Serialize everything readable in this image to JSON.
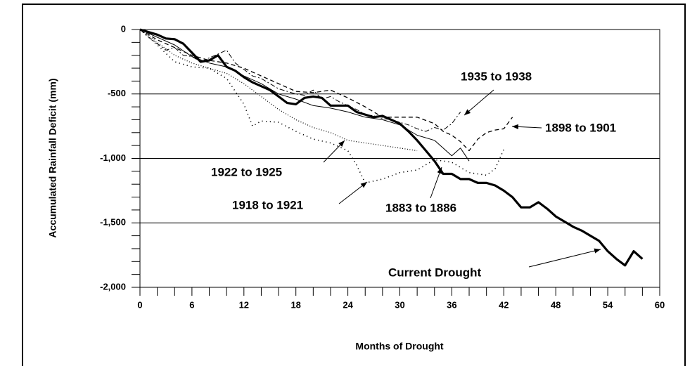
{
  "chart_data": {
    "type": "line",
    "xlabel": "Months of Drought",
    "ylabel": "Accumulated Rainfall Deficit (mm)",
    "xlim": [
      0,
      60
    ],
    "xticks": [
      0,
      6,
      12,
      18,
      24,
      30,
      36,
      42,
      48,
      54,
      60
    ],
    "xminorticks": [
      2,
      4,
      8,
      10,
      14,
      16,
      20,
      22,
      26,
      28,
      32,
      34,
      38,
      40,
      44,
      46,
      50,
      52,
      56,
      58
    ],
    "ylim": [
      -2000,
      0
    ],
    "yticks": [
      0,
      -500,
      {
        "value": -1000,
        "label": "-1,000"
      },
      {
        "value": -1500,
        "label": "-1,500"
      },
      {
        "value": -2000,
        "label": "-2,000"
      }
    ],
    "yminorticks": [
      -100,
      -200,
      -300,
      -400,
      -600,
      -700,
      -800,
      -900,
      -1100,
      -1200,
      -1300,
      -1400,
      -1600,
      -1700,
      -1800,
      -1900
    ],
    "grid": [
      -500,
      -1000,
      -1500
    ],
    "color": "#000000",
    "series": [
      {
        "name": "Current Drought",
        "style": "bold",
        "x": [
          0,
          1,
          2,
          3,
          4,
          5,
          6,
          7,
          8,
          9,
          10,
          11,
          12,
          13,
          14,
          15,
          16,
          17,
          18,
          19,
          20,
          21,
          22,
          23,
          24,
          25,
          26,
          27,
          28,
          29,
          30,
          31,
          32,
          33,
          34,
          35,
          36,
          37,
          38,
          39,
          40,
          41,
          42,
          43,
          44,
          45,
          46,
          47,
          48,
          49,
          50,
          51,
          52,
          53,
          54,
          55,
          56,
          57,
          58
        ],
        "values": [
          0,
          -20,
          -40,
          -70,
          -75,
          -110,
          -180,
          -250,
          -240,
          -200,
          -290,
          -320,
          -370,
          -410,
          -440,
          -470,
          -520,
          -570,
          -580,
          -530,
          -520,
          -530,
          -590,
          -590,
          -590,
          -640,
          -660,
          -680,
          -670,
          -700,
          -730,
          -790,
          -860,
          -940,
          -1020,
          -1120,
          -1120,
          -1160,
          -1160,
          -1190,
          -1190,
          -1210,
          -1250,
          -1300,
          -1380,
          -1380,
          -1340,
          -1390,
          -1450,
          -1490,
          -1530,
          -1560,
          -1600,
          -1640,
          -1720,
          -1780,
          -1830,
          -1720,
          -1780
        ]
      },
      {
        "name": "1935 to 1938",
        "style": "dashdot",
        "x": [
          0,
          1,
          2,
          3,
          4,
          5,
          6,
          7,
          8,
          9,
          10,
          11,
          12,
          13,
          14,
          15,
          16,
          17,
          18,
          19,
          20,
          21,
          22,
          23,
          24,
          25,
          26,
          27,
          28,
          29,
          30,
          31,
          32,
          33,
          34,
          35,
          36,
          37
        ],
        "values": [
          0,
          -60,
          -110,
          -160,
          -140,
          -200,
          -210,
          -250,
          -220,
          -190,
          -160,
          -260,
          -310,
          -360,
          -380,
          -420,
          -460,
          -480,
          -500,
          -510,
          -470,
          -540,
          -520,
          -560,
          -590,
          -620,
          -660,
          -670,
          -690,
          -700,
          -720,
          -740,
          -770,
          -790,
          -760,
          -780,
          -730,
          -640
        ]
      },
      {
        "name": "1898 to 1901",
        "style": "dashed",
        "x": [
          0,
          2,
          4,
          6,
          8,
          10,
          12,
          14,
          16,
          18,
          20,
          22,
          24,
          26,
          28,
          30,
          32,
          34,
          35,
          36,
          37,
          38,
          39,
          40,
          41,
          42,
          43
        ],
        "values": [
          0,
          -80,
          -140,
          -200,
          -240,
          -260,
          -300,
          -360,
          -420,
          -480,
          -490,
          -470,
          -530,
          -600,
          -680,
          -680,
          -680,
          -730,
          -790,
          -820,
          -870,
          -940,
          -850,
          -800,
          -780,
          -770,
          -680
        ]
      },
      {
        "name": "1883 to 1886",
        "style": "solid",
        "x": [
          0,
          2,
          4,
          6,
          8,
          10,
          12,
          14,
          16,
          18,
          20,
          22,
          24,
          26,
          28,
          30,
          32,
          34,
          36,
          37,
          38
        ],
        "values": [
          0,
          -60,
          -120,
          -210,
          -260,
          -290,
          -360,
          -420,
          -500,
          -540,
          -590,
          -610,
          -640,
          -680,
          -700,
          -740,
          -820,
          -860,
          -980,
          -920,
          -1020
        ]
      },
      {
        "name": "1922 to 1925",
        "style": "dotted",
        "x": [
          0,
          2,
          4,
          6,
          8,
          10,
          12,
          14,
          16,
          18,
          20,
          22,
          24,
          26,
          28,
          30,
          32
        ],
        "values": [
          0,
          -100,
          -200,
          -260,
          -300,
          -340,
          -420,
          -520,
          -620,
          -700,
          -760,
          -800,
          -860,
          -880,
          -900,
          -920,
          -940
        ]
      },
      {
        "name": "1918 to 1921",
        "style": "sparsedot",
        "x": [
          0,
          2,
          4,
          6,
          8,
          10,
          12,
          13,
          14,
          16,
          18,
          20,
          22,
          24,
          25,
          26,
          28,
          30,
          32,
          34,
          36,
          38,
          40,
          41,
          42
        ],
        "values": [
          0,
          -120,
          -250,
          -290,
          -300,
          -380,
          -580,
          -750,
          -710,
          -720,
          -790,
          -850,
          -880,
          -940,
          -1050,
          -1190,
          -1160,
          -1110,
          -1090,
          -1010,
          -1030,
          -1110,
          -1130,
          -1080,
          -930
        ]
      }
    ]
  }
}
